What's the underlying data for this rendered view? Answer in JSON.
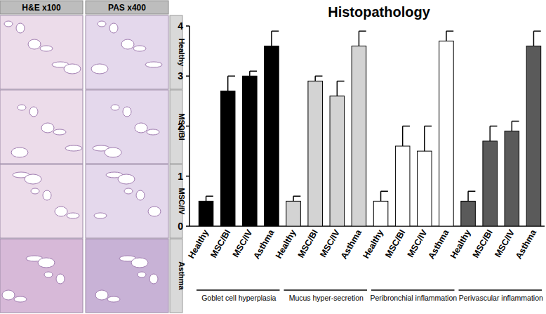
{
  "chart_data": {
    "type": "bar",
    "title": "Histopathology",
    "categories": [
      "Healthy",
      "MSC/BI",
      "MSC/IV",
      "Asthma"
    ],
    "series": [
      {
        "name": "Goblet cell hyperplasia",
        "color": "#000000",
        "values": [
          0.5,
          2.7,
          3.0,
          3.6
        ],
        "errors": [
          0.1,
          0.3,
          0.1,
          0.3
        ]
      },
      {
        "name": "Mucus hyper-secretion",
        "color": "#d3d3d3",
        "values": [
          0.5,
          2.9,
          2.6,
          3.6
        ],
        "errors": [
          0.1,
          0.1,
          0.3,
          0.3
        ]
      },
      {
        "name": "Peribronchial inflammation",
        "color": "#ffffff",
        "values": [
          0.5,
          1.6,
          1.5,
          3.7
        ],
        "errors": [
          0.2,
          0.4,
          0.5,
          0.2
        ]
      },
      {
        "name": "Perivascular inflammation",
        "color": "#5a5a5a",
        "values": [
          0.5,
          1.7,
          1.9,
          3.6
        ],
        "errors": [
          0.2,
          0.3,
          0.2,
          0.3
        ]
      }
    ],
    "ylim": [
      0,
      4
    ],
    "yticks": [
      0,
      1,
      2,
      3,
      4
    ],
    "grid": false
  },
  "image_panel": {
    "column_titles": [
      "H&E x100",
      "PAS x400"
    ],
    "row_labels": [
      "Healthy",
      "MSC/BI",
      "MSC/IV",
      "Asthma"
    ]
  }
}
